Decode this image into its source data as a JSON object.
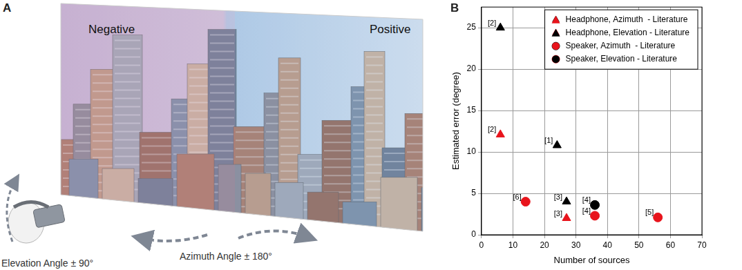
{
  "illustration": {
    "label": "A",
    "left_text": "Negative",
    "right_text": "Positive",
    "azimuth_text": "Azimuth Angle ± 180°",
    "elevation_text": "Elevation Angle ± 90°"
  },
  "chart_data": {
    "type": "scatter",
    "title": "B",
    "x_label": "Number of sources",
    "y_label": "Estimated error (degree)",
    "xlim": [
      0,
      70
    ],
    "xticks": [
      0,
      10,
      20,
      30,
      40,
      50,
      60,
      70
    ],
    "ylim": [
      0,
      27.5
    ],
    "yticks": [
      0,
      5,
      10,
      15,
      20,
      25
    ],
    "grid": true,
    "legend": "upper right",
    "series": [
      {
        "name": "Headphone, Azimuth  - Literature",
        "color": "#e8141c",
        "marker": "triangle",
        "x": [
          6,
          27
        ],
        "values": [
          12.1,
          2
        ],
        "point_labels": [
          "[2]",
          "[3]"
        ]
      },
      {
        "name": "Headphone, Elevation - Literature",
        "color": "#000000",
        "marker": "triangle",
        "x": [
          6,
          24,
          27
        ],
        "values": [
          25,
          10.8,
          4
        ],
        "point_labels": [
          "[2]",
          "[1]",
          "[3]"
        ]
      },
      {
        "name": "Speaker, Azimuth  - Literature",
        "color": "#e8141c",
        "marker": "circle",
        "x": [
          14,
          36,
          56
        ],
        "values": [
          4,
          2.3,
          2.1
        ],
        "point_labels": [
          "[6]",
          "[4]",
          "[5]"
        ]
      },
      {
        "name": "Speaker, Elevation - Literature",
        "color": "#000000",
        "marker": "circle",
        "x": [
          36
        ],
        "values": [
          3.6
        ],
        "point_labels": [
          "[4]"
        ]
      }
    ]
  }
}
